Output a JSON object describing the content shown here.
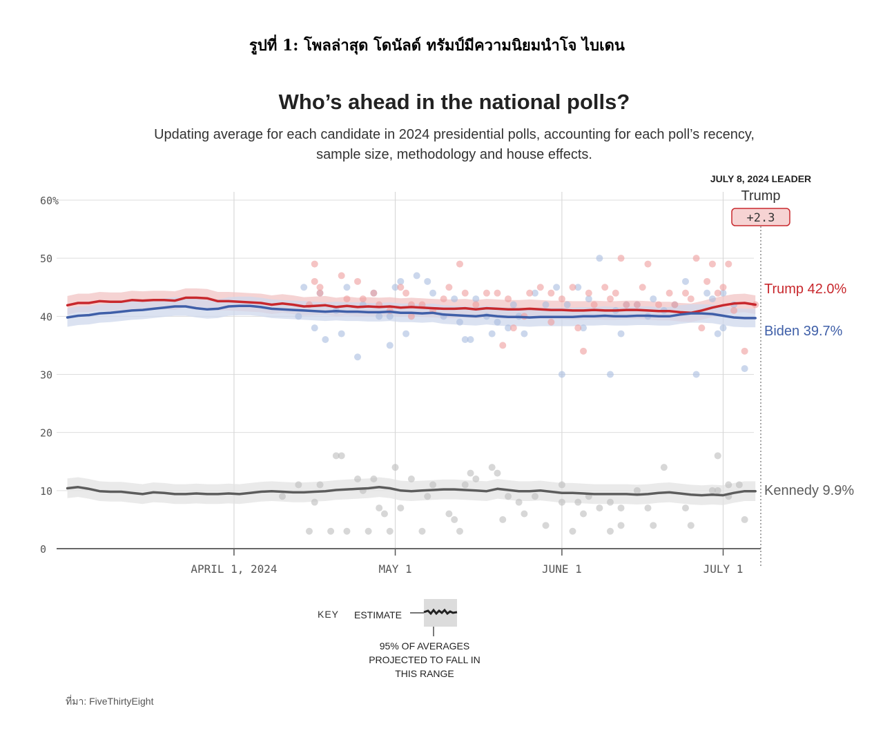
{
  "figure_caption": "รูปที่ 1: โพลล่าสุด โดนัลด์ ทรัมป์มีความนิยมนำโจ ไบเดน",
  "source": "ที่มา: FiveThirtyEight",
  "chart_data": {
    "type": "line",
    "title": "Who’s ahead in the national polls?",
    "subtitle_line1": "Updating average for each candidate in 2024 presidential polls, accounting for each poll’s recency,",
    "subtitle_line2": "sample size, methodology and house effects.",
    "ylim": [
      0,
      60
    ],
    "y_ticks": [
      0,
      10,
      20,
      30,
      40,
      50,
      60
    ],
    "y_tick_labels": [
      "0",
      "10",
      "20",
      "30",
      "40",
      "50",
      "60%"
    ],
    "x_ticks": [
      31,
      61,
      92,
      122
    ],
    "x_tick_labels": [
      "APRIL 1, 2024",
      "MAY 1",
      "JUNE 1",
      "JULY 1"
    ],
    "xlim": [
      -2,
      129
    ],
    "grid": true,
    "leader": {
      "date_label": "JULY 8, 2024 LEADER",
      "name": "Trump",
      "margin": "+2.3",
      "color": "#c8282d"
    },
    "series": [
      {
        "name": "Trump",
        "end_label": "Trump 42.0%",
        "color": "#c8282d",
        "band_color": "#f2c4c4",
        "x": [
          0,
          2,
          4,
          6,
          8,
          10,
          12,
          14,
          16,
          18,
          20,
          22,
          24,
          26,
          28,
          30,
          32,
          34,
          36,
          38,
          40,
          42,
          44,
          46,
          48,
          50,
          52,
          54,
          56,
          58,
          60,
          62,
          64,
          66,
          68,
          70,
          72,
          74,
          76,
          78,
          80,
          82,
          84,
          86,
          88,
          90,
          92,
          94,
          96,
          98,
          100,
          102,
          104,
          106,
          108,
          110,
          112,
          114,
          116,
          118,
          120,
          122,
          124,
          126,
          128
        ],
        "values": [
          41.9,
          42.3,
          42.3,
          42.6,
          42.5,
          42.5,
          42.8,
          42.7,
          42.8,
          42.8,
          42.7,
          43.2,
          43.2,
          43.1,
          42.6,
          42.6,
          42.5,
          42.4,
          42.3,
          42.0,
          42.2,
          42.0,
          41.7,
          41.8,
          41.9,
          41.6,
          41.8,
          41.6,
          41.7,
          41.6,
          41.7,
          41.5,
          41.6,
          41.5,
          41.4,
          41.3,
          41.3,
          41.4,
          41.2,
          41.4,
          41.3,
          41.2,
          41.2,
          41.3,
          41.2,
          41.1,
          41.1,
          41.0,
          41.0,
          41.1,
          41.0,
          41.0,
          41.1,
          41.1,
          41.0,
          40.9,
          40.9,
          40.7,
          40.6,
          41.0,
          41.5,
          41.9,
          42.2,
          42.3,
          42.0
        ],
        "band": 1.6
      },
      {
        "name": "Biden",
        "end_label": "Biden 39.7%",
        "color": "#3f5fa8",
        "band_color": "#cfd8ec",
        "x": [
          0,
          2,
          4,
          6,
          8,
          10,
          12,
          14,
          16,
          18,
          20,
          22,
          24,
          26,
          28,
          30,
          32,
          34,
          36,
          38,
          40,
          42,
          44,
          46,
          48,
          50,
          52,
          54,
          56,
          58,
          60,
          62,
          64,
          66,
          68,
          70,
          72,
          74,
          76,
          78,
          80,
          82,
          84,
          86,
          88,
          90,
          92,
          94,
          96,
          98,
          100,
          102,
          104,
          106,
          108,
          110,
          112,
          114,
          116,
          118,
          120,
          122,
          124,
          126,
          128
        ],
        "values": [
          39.8,
          40.1,
          40.2,
          40.5,
          40.6,
          40.8,
          41.0,
          41.1,
          41.3,
          41.5,
          41.7,
          41.7,
          41.4,
          41.2,
          41.3,
          41.7,
          41.8,
          41.8,
          41.6,
          41.3,
          41.2,
          41.1,
          41.0,
          40.9,
          40.8,
          40.9,
          40.8,
          40.8,
          40.7,
          40.7,
          40.8,
          40.6,
          40.6,
          40.5,
          40.6,
          40.3,
          40.2,
          40.1,
          40.0,
          40.2,
          40.0,
          39.9,
          39.9,
          39.8,
          39.9,
          39.9,
          39.9,
          39.9,
          40.0,
          40.0,
          40.1,
          40.0,
          40.0,
          40.1,
          40.1,
          40.0,
          40.0,
          40.3,
          40.5,
          40.5,
          40.4,
          40.1,
          39.8,
          39.7,
          39.7
        ],
        "band": 1.6
      },
      {
        "name": "Kennedy",
        "end_label": "Kennedy 9.9%",
        "color": "#5c5c5c",
        "band_color": "#e3e3e3",
        "x": [
          0,
          2,
          4,
          6,
          8,
          10,
          12,
          14,
          16,
          18,
          20,
          22,
          24,
          26,
          28,
          30,
          32,
          34,
          36,
          38,
          40,
          42,
          44,
          46,
          48,
          50,
          52,
          54,
          56,
          58,
          60,
          62,
          64,
          66,
          68,
          70,
          72,
          74,
          76,
          78,
          80,
          82,
          84,
          86,
          88,
          90,
          92,
          94,
          96,
          98,
          100,
          102,
          104,
          106,
          108,
          110,
          112,
          114,
          116,
          118,
          120,
          122,
          124,
          126,
          128
        ],
        "values": [
          10.4,
          10.6,
          10.3,
          9.9,
          9.8,
          9.8,
          9.6,
          9.4,
          9.7,
          9.6,
          9.4,
          9.4,
          9.5,
          9.4,
          9.4,
          9.5,
          9.4,
          9.6,
          9.8,
          9.9,
          9.8,
          9.7,
          9.7,
          9.8,
          9.9,
          10.1,
          10.2,
          10.3,
          10.4,
          10.6,
          10.4,
          10.0,
          9.9,
          10.0,
          10.1,
          10.2,
          10.2,
          10.1,
          10.0,
          9.9,
          10.3,
          10.1,
          9.9,
          9.9,
          10.0,
          9.8,
          9.6,
          9.6,
          9.5,
          9.4,
          9.4,
          9.4,
          9.4,
          9.3,
          9.4,
          9.6,
          9.7,
          9.5,
          9.3,
          9.2,
          9.3,
          9.2,
          9.6,
          9.9,
          9.9
        ],
        "band": 1.7
      }
    ],
    "polls_trump": [
      [
        46,
        49
      ],
      [
        46,
        46
      ],
      [
        45,
        42
      ],
      [
        47,
        44
      ],
      [
        47,
        45
      ],
      [
        51,
        47
      ],
      [
        52,
        43
      ],
      [
        54,
        46
      ],
      [
        55,
        43
      ],
      [
        57,
        44
      ],
      [
        58,
        42
      ],
      [
        60,
        41
      ],
      [
        62,
        45
      ],
      [
        63,
        44
      ],
      [
        64,
        42
      ],
      [
        64,
        40
      ],
      [
        66,
        42
      ],
      [
        68,
        41
      ],
      [
        70,
        43
      ],
      [
        71,
        45
      ],
      [
        73,
        49
      ],
      [
        74,
        44
      ],
      [
        76,
        42
      ],
      [
        78,
        44
      ],
      [
        80,
        44
      ],
      [
        81,
        35
      ],
      [
        82,
        43
      ],
      [
        83,
        38
      ],
      [
        85,
        40
      ],
      [
        86,
        44
      ],
      [
        88,
        45
      ],
      [
        90,
        44
      ],
      [
        90,
        39
      ],
      [
        92,
        43
      ],
      [
        94,
        45
      ],
      [
        95,
        38
      ],
      [
        96,
        34
      ],
      [
        97,
        44
      ],
      [
        98,
        42
      ],
      [
        100,
        45
      ],
      [
        101,
        43
      ],
      [
        102,
        44
      ],
      [
        103,
        50
      ],
      [
        104,
        42
      ],
      [
        106,
        42
      ],
      [
        107,
        45
      ],
      [
        108,
        49
      ],
      [
        110,
        42
      ],
      [
        112,
        44
      ],
      [
        113,
        42
      ],
      [
        115,
        44
      ],
      [
        116,
        43
      ],
      [
        117,
        50
      ],
      [
        118,
        38
      ],
      [
        119,
        46
      ],
      [
        120,
        49
      ],
      [
        121,
        44
      ],
      [
        122,
        45
      ],
      [
        123,
        49
      ],
      [
        124,
        41
      ],
      [
        126,
        34
      ],
      [
        128,
        42
      ]
    ],
    "polls_biden": [
      [
        43,
        40
      ],
      [
        44,
        45
      ],
      [
        46,
        38
      ],
      [
        47,
        44
      ],
      [
        48,
        36
      ],
      [
        50,
        41
      ],
      [
        51,
        37
      ],
      [
        52,
        45
      ],
      [
        54,
        33
      ],
      [
        55,
        42
      ],
      [
        57,
        44
      ],
      [
        58,
        40
      ],
      [
        60,
        40
      ],
      [
        60,
        35
      ],
      [
        61,
        45
      ],
      [
        62,
        46
      ],
      [
        63,
        37
      ],
      [
        65,
        47
      ],
      [
        67,
        46
      ],
      [
        68,
        44
      ],
      [
        70,
        40
      ],
      [
        72,
        43
      ],
      [
        73,
        39
      ],
      [
        74,
        36
      ],
      [
        75,
        36
      ],
      [
        76,
        43
      ],
      [
        78,
        40
      ],
      [
        79,
        37
      ],
      [
        80,
        39
      ],
      [
        82,
        38
      ],
      [
        83,
        42
      ],
      [
        84,
        40
      ],
      [
        85,
        37
      ],
      [
        87,
        44
      ],
      [
        89,
        42
      ],
      [
        91,
        45
      ],
      [
        92,
        30
      ],
      [
        93,
        42
      ],
      [
        95,
        45
      ],
      [
        96,
        38
      ],
      [
        97,
        43
      ],
      [
        99,
        50
      ],
      [
        101,
        30
      ],
      [
        102,
        41
      ],
      [
        103,
        37
      ],
      [
        104,
        42
      ],
      [
        106,
        42
      ],
      [
        108,
        40
      ],
      [
        109,
        43
      ],
      [
        111,
        41
      ],
      [
        113,
        42
      ],
      [
        115,
        46
      ],
      [
        117,
        30
      ],
      [
        119,
        44
      ],
      [
        120,
        43
      ],
      [
        121,
        37
      ],
      [
        122,
        44
      ],
      [
        122,
        38
      ],
      [
        124,
        42
      ],
      [
        126,
        31
      ]
    ],
    "polls_kennedy": [
      [
        40,
        9
      ],
      [
        43,
        11
      ],
      [
        45,
        3
      ],
      [
        46,
        8
      ],
      [
        47,
        11
      ],
      [
        49,
        3
      ],
      [
        50,
        16
      ],
      [
        51,
        16
      ],
      [
        52,
        3
      ],
      [
        54,
        12
      ],
      [
        55,
        10
      ],
      [
        56,
        3
      ],
      [
        57,
        12
      ],
      [
        58,
        7
      ],
      [
        59,
        6
      ],
      [
        60,
        3
      ],
      [
        61,
        14
      ],
      [
        62,
        7
      ],
      [
        64,
        12
      ],
      [
        66,
        3
      ],
      [
        67,
        9
      ],
      [
        68,
        11
      ],
      [
        71,
        6
      ],
      [
        72,
        5
      ],
      [
        73,
        3
      ],
      [
        74,
        11
      ],
      [
        75,
        13
      ],
      [
        76,
        12
      ],
      [
        79,
        14
      ],
      [
        80,
        13
      ],
      [
        81,
        5
      ],
      [
        82,
        9
      ],
      [
        84,
        8
      ],
      [
        85,
        6
      ],
      [
        87,
        9
      ],
      [
        89,
        4
      ],
      [
        92,
        11
      ],
      [
        92,
        8
      ],
      [
        94,
        3
      ],
      [
        95,
        8
      ],
      [
        96,
        6
      ],
      [
        97,
        9
      ],
      [
        99,
        7
      ],
      [
        101,
        3
      ],
      [
        101,
        8
      ],
      [
        103,
        7
      ],
      [
        103,
        4
      ],
      [
        106,
        10
      ],
      [
        108,
        7
      ],
      [
        109,
        4
      ],
      [
        111,
        14
      ],
      [
        115,
        7
      ],
      [
        116,
        4
      ],
      [
        120,
        10
      ],
      [
        121,
        10
      ],
      [
        121,
        16
      ],
      [
        123,
        11
      ],
      [
        123,
        9
      ],
      [
        125,
        11
      ],
      [
        126,
        5
      ]
    ],
    "key": {
      "label": "KEY",
      "estimate_label": "ESTIMATE",
      "range_label_1": "95% OF AVERAGES",
      "range_label_2": "PROJECTED TO FALL IN",
      "range_label_3": "THIS RANGE"
    }
  }
}
